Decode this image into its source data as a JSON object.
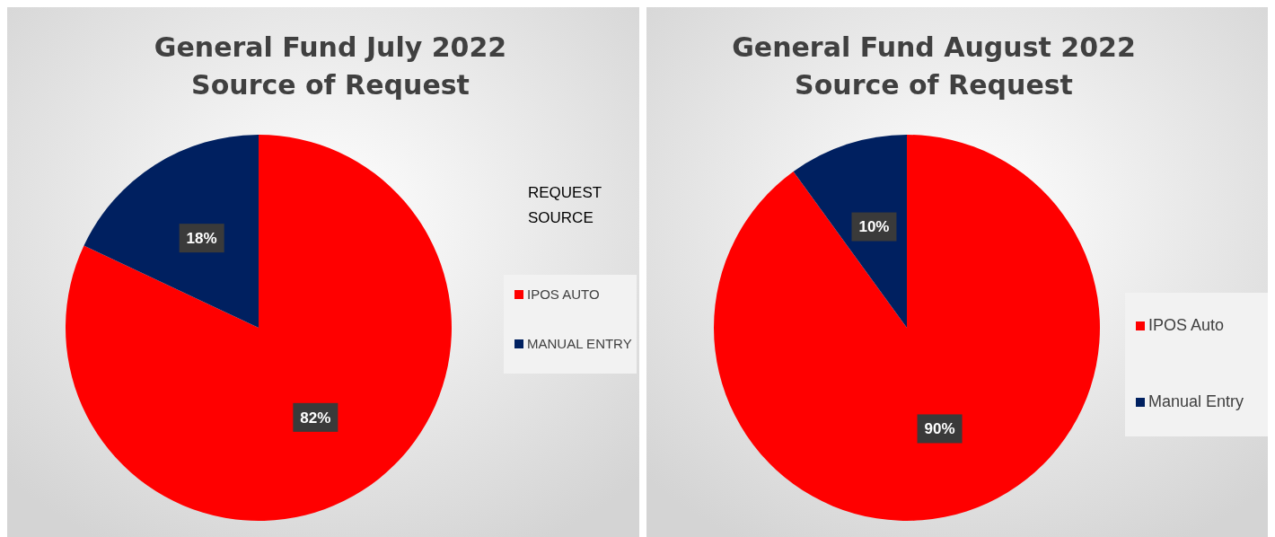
{
  "chart_data": [
    {
      "type": "pie",
      "title": "General Fund July 2022\nSource of Request",
      "categories": [
        "IPOS AUTO",
        "MANUAL ENTRY"
      ],
      "values": [
        82,
        18
      ],
      "colors": [
        "#ff0000",
        "#002060"
      ],
      "value_labels": [
        "82%",
        "18%"
      ],
      "legend": "right",
      "legend_title": "REQUEST\nSOURCE"
    },
    {
      "type": "pie",
      "title": "General Fund August 2022\nSource of Request",
      "categories": [
        "IPOS Auto",
        "Manual Entry"
      ],
      "values": [
        90,
        10
      ],
      "colors": [
        "#ff0000",
        "#002060"
      ],
      "value_labels": [
        "90%",
        "10%"
      ],
      "legend": "right"
    }
  ]
}
